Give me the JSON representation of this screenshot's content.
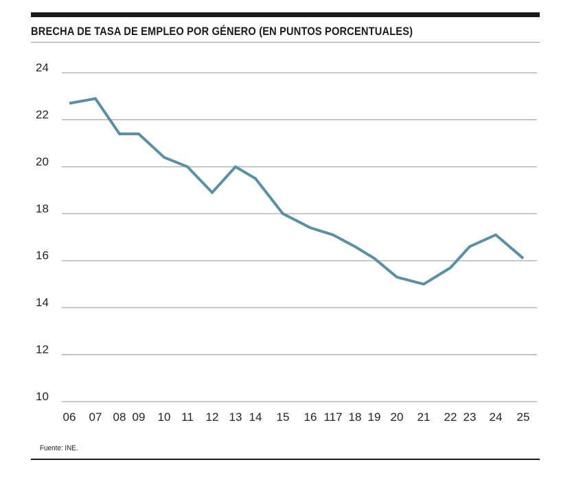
{
  "chart_data": {
    "type": "line",
    "title": "BRECHA DE TASA DE EMPLEO POR GÉNERO (EN PUNTOS PORCENTUALES)",
    "xlabel": "",
    "ylabel": "",
    "categories": [
      "06",
      "07",
      "08",
      "09",
      "10",
      "11",
      "12",
      "13",
      "14",
      "15",
      "16",
      "117",
      "18",
      "19",
      "20",
      "21",
      "22",
      "23",
      "24",
      "25"
    ],
    "series": [
      {
        "values": [
          22.7,
          22.9,
          21.4,
          21.4,
          20.4,
          20.0,
          18.9,
          20.0,
          19.5,
          18.0,
          17.4,
          17.1,
          16.6,
          16.1,
          15.3,
          15.0,
          15.7,
          16.6,
          17.1,
          16.1
        ],
        "color": "#5a8fa6"
      }
    ],
    "yticks": [
      24,
      22,
      20,
      18,
      16,
      14,
      12,
      10
    ],
    "ylim": [
      10,
      24
    ],
    "grid": true,
    "legend": "none"
  },
  "source": "Fuente: INE."
}
